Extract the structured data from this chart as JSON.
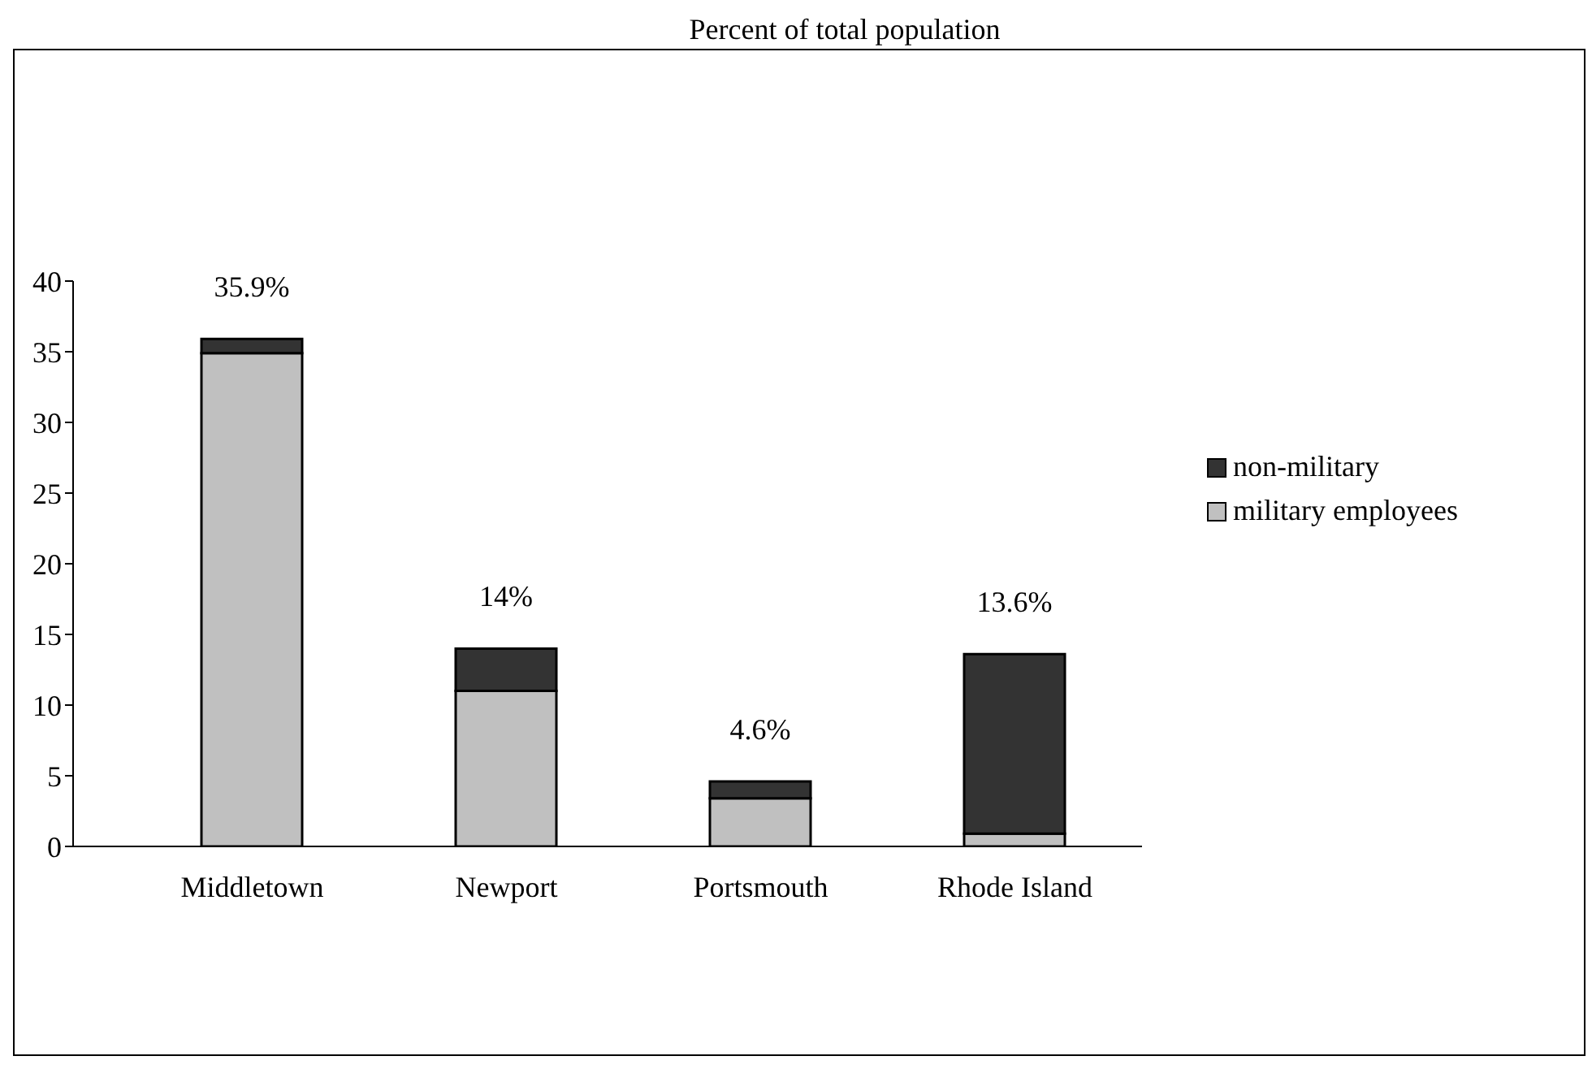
{
  "chart_data": {
    "type": "bar",
    "title": "Percent of total population",
    "categories": [
      "Middletown",
      "Newport",
      "Portsmouth",
      "Rhode Island"
    ],
    "stacked": true,
    "series": [
      {
        "name": "military employees",
        "color": "#c0c0c0",
        "values": [
          34.9,
          11,
          3.4,
          0.9
        ]
      },
      {
        "name": "non-military",
        "color": "#333333",
        "values": [
          1.0,
          3,
          1.2,
          12.7
        ]
      }
    ],
    "totals": [
      "35.9%",
      "14%",
      "4.6%",
      "13.6%"
    ],
    "ylim": [
      0,
      40
    ],
    "yticks": [
      0,
      5,
      10,
      15,
      20,
      25,
      30,
      35,
      40
    ],
    "legend": "right"
  }
}
